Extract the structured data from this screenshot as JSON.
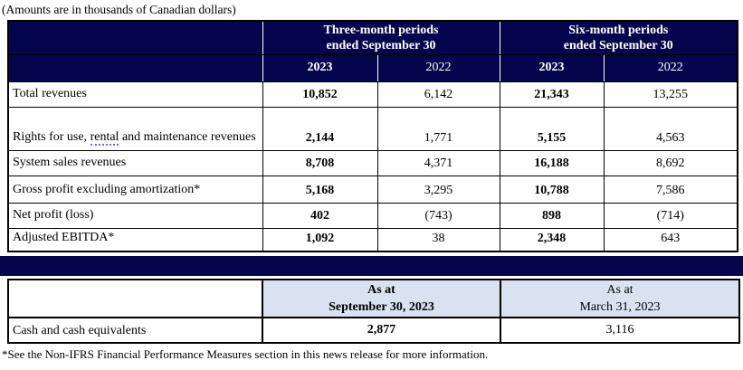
{
  "title": "(Amounts are in thousands of Canadian dollars)",
  "colors": {
    "header_navy": "#05054E",
    "balance_header_blue": "#D9E2F0",
    "border_black": "#000000",
    "header_text_white": "#FFFFFF",
    "spellcheck_underline": "#6B6BD6"
  },
  "main_table": {
    "group_headers": [
      {
        "text": "Three-month periods\nended September 30"
      },
      {
        "text": "Six-month periods\nended September 30"
      }
    ],
    "year_headers": [
      "2023",
      "2022",
      "2023",
      "2022"
    ],
    "rows": [
      {
        "label": "Total revenues",
        "values": [
          "10,852",
          "6,142",
          "21,343",
          "13,255"
        ]
      },
      {
        "label_pre": "Rights for use, ",
        "label_spellcheck": "rental",
        "label_post": " and maintenance revenues",
        "values": [
          "2,144",
          "1,771",
          "5,155",
          "4,563"
        ]
      },
      {
        "label": "System sales revenues",
        "values": [
          "8,708",
          "4,371",
          "16,188",
          "8,692"
        ]
      },
      {
        "label": "Gross profit excluding amortization*",
        "values": [
          "5,168",
          "3,295",
          "10,788",
          "7,586"
        ]
      },
      {
        "label": "Net profit (loss)",
        "values": [
          "402",
          "(743)",
          "898",
          "(714)"
        ]
      },
      {
        "label": "Adjusted EBITDA*",
        "values": [
          "1,092",
          "38",
          "2,348",
          "643"
        ]
      }
    ]
  },
  "balance_table": {
    "headers": [
      {
        "text": "As at\nSeptember 30, 2023"
      },
      {
        "text": "As at\nMarch 31, 2023"
      }
    ],
    "rows": [
      {
        "label": "Cash and cash equivalents",
        "values": [
          "2,877",
          "3,116"
        ]
      }
    ]
  },
  "footnote": "*See the Non-IFRS Financial Performance Measures section in this news release for more information."
}
